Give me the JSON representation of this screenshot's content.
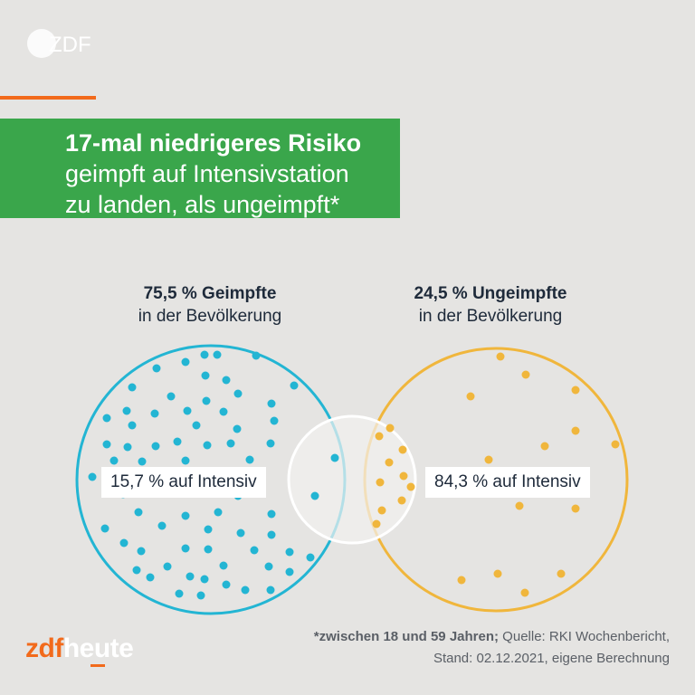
{
  "brand": {
    "top_logo_text": "ZDF",
    "bottom_logo_zdf": "zdf",
    "bottom_logo_heute": "heute",
    "colors": {
      "accent_orange": "#f26a1b",
      "title_green": "#3aa64b",
      "vaccinated_blue": "#23b5d3",
      "unvaccinated_yellow": "#f0b63c"
    }
  },
  "title": {
    "line1": "17-mal niedrigeres Risiko",
    "line2": "geimpft auf Intensivstation",
    "line3": "zu landen, als ungeimpft*"
  },
  "groups": {
    "vaccinated": {
      "share_label": "75,5 % Geimpfte",
      "sub_label": "in der Bevölkerung",
      "icu_label": "15,7 % auf Intensiv",
      "population_share": 75.5,
      "icu_share": 15.7
    },
    "unvaccinated": {
      "share_label": "24,5 % Ungeimpfte",
      "sub_label": "in der Bevölkerung",
      "icu_label": "84,3 % auf Intensiv",
      "population_share": 24.5,
      "icu_share": 84.3
    }
  },
  "footnote": {
    "strong": "*zwischen 18 und 59 Jahren;",
    "line1_rest": " Quelle: RKI Wochenbericht,",
    "line2": "Stand: 02.12.2021, eigene Berechnung"
  }
}
